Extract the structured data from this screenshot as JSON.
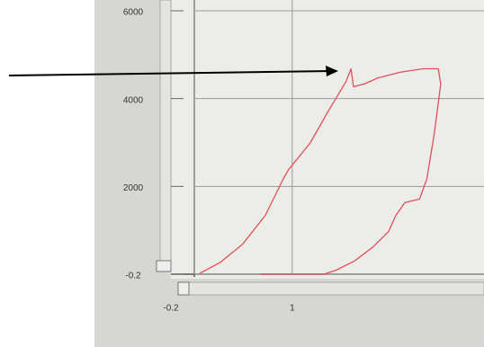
{
  "chart_data": {
    "type": "line",
    "x": [
      -0.13,
      0.12,
      0.39,
      0.67,
      0.89,
      0.95,
      1.22,
      1.44,
      1.66,
      1.72,
      1.75,
      1.88,
      2.05,
      2.32,
      2.6,
      2.79,
      2.82,
      2.74,
      2.65,
      2.56,
      2.38,
      2.27,
      2.18,
      1.99,
      1.77,
      1.55,
      1.39,
      0.61
    ],
    "series": [
      {
        "color": "#e0505a",
        "values": [
          20,
          270,
          680,
          1340,
          2170,
          2370,
          2990,
          3710,
          4390,
          4680,
          4270,
          4330,
          4470,
          4600,
          4680,
          4680,
          4330,
          3200,
          2170,
          1710,
          1630,
          1340,
          970,
          620,
          310,
          100,
          0,
          0
        ]
      }
    ],
    "xlim": [
      -0.2,
      3.35
    ],
    "ylim": [
      -0.2,
      6000
    ],
    "xticks": [
      -0.2,
      1
    ],
    "yticks": [
      -0.2,
      2000,
      4000,
      6000
    ],
    "grid": true
  }
}
